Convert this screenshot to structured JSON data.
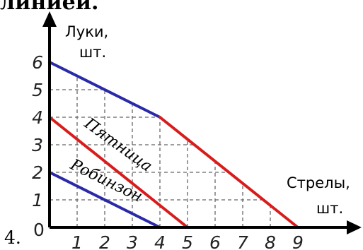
{
  "page": {
    "top_text": "линией.",
    "item_number": "4."
  },
  "chart_data": {
    "type": "line",
    "title": "",
    "xlabel": [
      "Стрелы,",
      "шт."
    ],
    "ylabel": [
      "Луки,",
      "шт."
    ],
    "origin_label": "0",
    "x_ticks": [
      "1",
      "2",
      "3",
      "4",
      "5",
      "6",
      "7",
      "8",
      "9"
    ],
    "y_ticks": [
      "1",
      "2",
      "3",
      "4",
      "5",
      "6"
    ],
    "xlim": [
      0,
      9
    ],
    "ylim": [
      0,
      6
    ],
    "grid": "dashed",
    "series": [
      {
        "name": "Робинзон",
        "color": "#2a2aa8",
        "x": [
          0,
          4
        ],
        "y": [
          2,
          0
        ]
      },
      {
        "name": "Пятница",
        "color": "#d81c1c",
        "x": [
          0,
          5
        ],
        "y": [
          4,
          0
        ]
      },
      {
        "color": "#2a2aa8",
        "x": [
          0,
          4
        ],
        "y": [
          6,
          4
        ]
      },
      {
        "color": "#d81c1c",
        "x": [
          4,
          9
        ],
        "y": [
          4,
          0
        ]
      }
    ]
  }
}
